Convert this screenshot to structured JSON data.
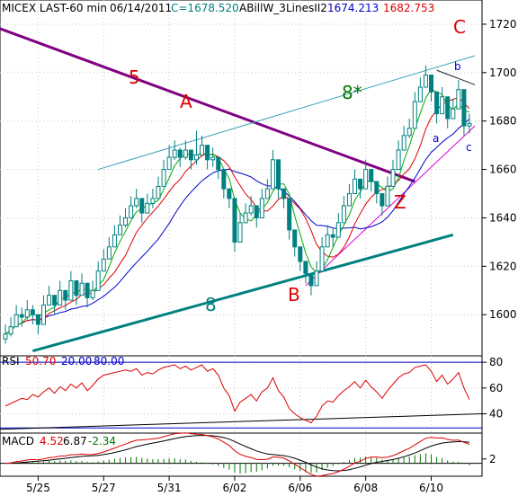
{
  "header": {
    "instrument": "MICEX LAST-60 min",
    "date": "06/14/2011",
    "close": "C=1678.520",
    "indicator": "ABillW_3LinesII2",
    "ind1": "1674.213",
    "ind2": "1682.753"
  },
  "colors": {
    "candle": "#008080",
    "purple": "#800080",
    "teal": "#008080",
    "lightteal": "#3aa0b8",
    "red": "#dd0000",
    "green": "#00aa00",
    "blue": "#0000cc",
    "magenta": "#dd00dd",
    "dark": "#222222",
    "darkgreen": "#007700"
  },
  "chart_data": [
    {
      "type": "candlestick",
      "panel": "price",
      "y_ticks": [
        1600,
        1620,
        1640,
        1660,
        1680,
        1700,
        1720
      ],
      "ylim": [
        1583,
        1730
      ],
      "x_ticks": [
        "5/25",
        "5/27",
        "5/31",
        "6/02",
        "6/06",
        "6/08",
        "6/10"
      ],
      "x_tick_index": [
        6,
        18,
        30,
        42,
        54,
        66,
        78
      ],
      "n_bars": 86,
      "series_close": [
        1592,
        1595,
        1600,
        1599,
        1602,
        1600,
        1596,
        1604,
        1608,
        1604,
        1610,
        1606,
        1614,
        1608,
        1613,
        1607,
        1610,
        1618,
        1623,
        1628,
        1633,
        1637,
        1640,
        1645,
        1648,
        1642,
        1646,
        1648,
        1653,
        1660,
        1665,
        1668,
        1665,
        1668,
        1664,
        1666,
        1670,
        1664,
        1665,
        1660,
        1652,
        1648,
        1630,
        1638,
        1642,
        1645,
        1640,
        1648,
        1652,
        1664,
        1652,
        1648,
        1635,
        1628,
        1622,
        1617,
        1612,
        1618,
        1628,
        1633,
        1632,
        1638,
        1645,
        1650,
        1656,
        1652,
        1660,
        1655,
        1650,
        1645,
        1653,
        1660,
        1668,
        1674,
        1677,
        1688,
        1694,
        1699,
        1692,
        1683,
        1690,
        1681,
        1685,
        1693,
        1678,
        1679
      ],
      "series_high": [
        1596,
        1599,
        1604,
        1603,
        1606,
        1604,
        1600,
        1608,
        1612,
        1608,
        1614,
        1610,
        1618,
        1612,
        1617,
        1611,
        1614,
        1622,
        1627,
        1632,
        1637,
        1641,
        1644,
        1649,
        1652,
        1646,
        1650,
        1652,
        1657,
        1664,
        1670,
        1672,
        1669,
        1672,
        1668,
        1676,
        1674,
        1668,
        1669,
        1664,
        1656,
        1652,
        1634,
        1642,
        1646,
        1649,
        1644,
        1652,
        1656,
        1668,
        1656,
        1652,
        1639,
        1632,
        1626,
        1621,
        1616,
        1622,
        1632,
        1637,
        1636,
        1642,
        1649,
        1654,
        1660,
        1656,
        1664,
        1659,
        1654,
        1649,
        1657,
        1664,
        1672,
        1678,
        1681,
        1692,
        1698,
        1703,
        1696,
        1687,
        1694,
        1685,
        1689,
        1697,
        1682,
        1683
      ],
      "series_low": [
        1588,
        1591,
        1596,
        1595,
        1598,
        1596,
        1592,
        1600,
        1604,
        1600,
        1606,
        1602,
        1610,
        1604,
        1609,
        1603,
        1606,
        1614,
        1619,
        1624,
        1629,
        1633,
        1636,
        1641,
        1644,
        1638,
        1642,
        1644,
        1649,
        1656,
        1661,
        1664,
        1661,
        1664,
        1660,
        1662,
        1666,
        1660,
        1661,
        1656,
        1648,
        1644,
        1626,
        1634,
        1638,
        1641,
        1636,
        1644,
        1648,
        1660,
        1648,
        1644,
        1631,
        1624,
        1618,
        1613,
        1608,
        1614,
        1624,
        1629,
        1628,
        1634,
        1641,
        1646,
        1652,
        1648,
        1656,
        1651,
        1646,
        1641,
        1649,
        1656,
        1664,
        1670,
        1673,
        1684,
        1690,
        1695,
        1688,
        1679,
        1686,
        1677,
        1681,
        1689,
        1674,
        1675
      ],
      "annotations": [
        "5",
        "A",
        "8*",
        "B",
        "8",
        "Z",
        "C",
        "a",
        "b",
        "c"
      ]
    },
    {
      "type": "line",
      "panel": "rsi",
      "title": "RSI",
      "values_label": [
        "50.70",
        "20.00",
        "80.00"
      ],
      "y_ticks": [
        40,
        60,
        80
      ],
      "ylim": [
        25,
        85
      ],
      "series": [
        {
          "name": "RSI",
          "values": [
            46,
            48,
            50,
            52,
            51,
            55,
            53,
            57,
            60,
            56,
            61,
            58,
            63,
            60,
            64,
            58,
            62,
            67,
            70,
            71,
            72,
            73,
            74,
            73,
            75,
            70,
            72,
            71,
            74,
            76,
            77,
            78,
            75,
            77,
            74,
            76,
            78,
            73,
            75,
            70,
            60,
            54,
            42,
            49,
            52,
            55,
            50,
            57,
            60,
            68,
            58,
            53,
            44,
            40,
            37,
            35,
            33,
            38,
            46,
            50,
            49,
            54,
            58,
            61,
            65,
            60,
            66,
            61,
            57,
            52,
            58,
            63,
            68,
            71,
            72,
            76,
            77,
            78,
            73,
            65,
            70,
            63,
            67,
            72,
            60,
            51
          ]
        }
      ]
    },
    {
      "type": "line",
      "panel": "macd",
      "title": "MACD",
      "values_label": [
        "4.52",
        "6.87",
        "-2.34"
      ],
      "y_ticks": [
        2
      ],
      "ylim": [
        -6,
        14
      ]
    }
  ]
}
